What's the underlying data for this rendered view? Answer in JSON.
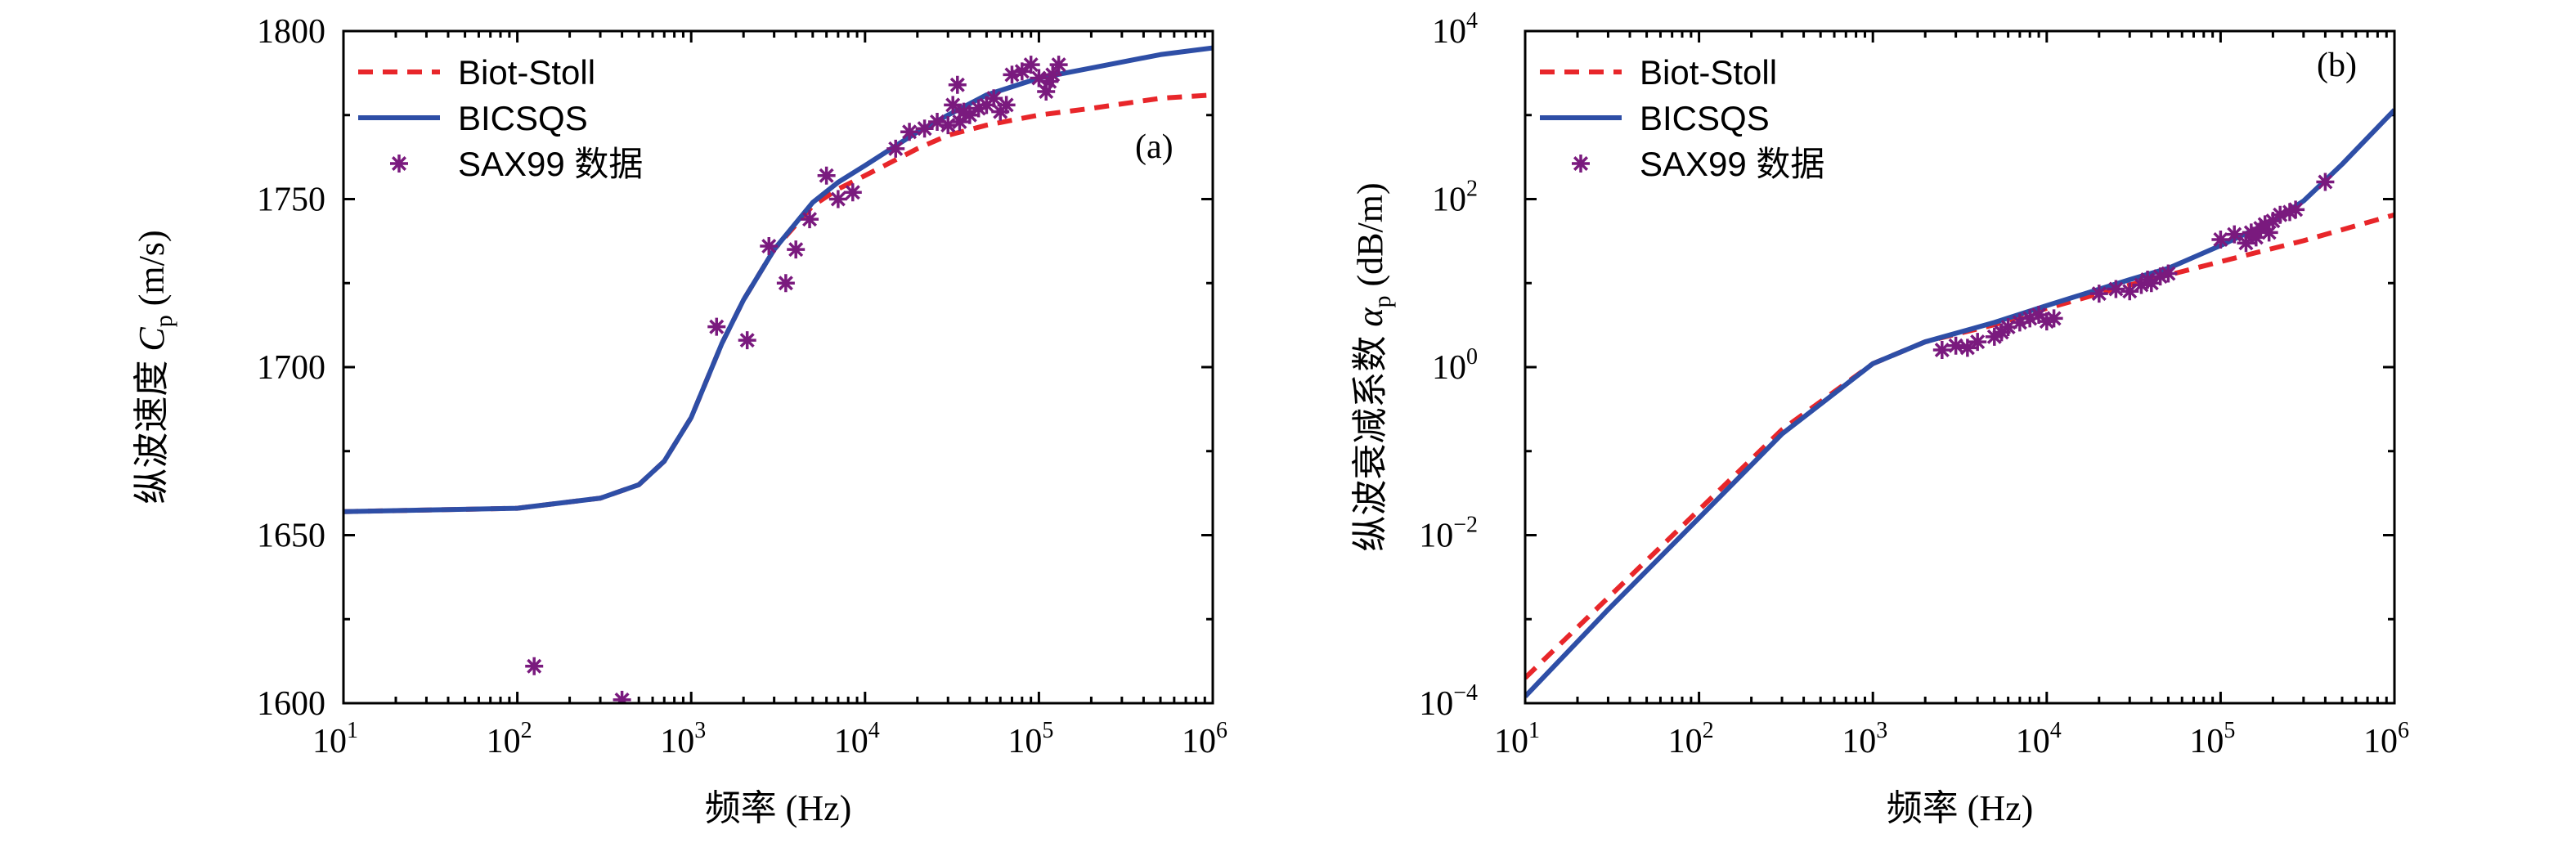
{
  "colors": {
    "biot": "#e8262a",
    "bicsqs": "#2e4ea6",
    "sax": "#7a1a7e"
  },
  "chart_data": [
    {
      "type": "line",
      "panel_label": "(a)",
      "xlabel": "频率 (Hz)",
      "ylabel_prefix": "纵波速度",
      "ylabel_sym": "C",
      "ylabel_sub": "p",
      "ylabel_unit": "(m/s)",
      "xscale": "log",
      "xlim": [
        10,
        1000000
      ],
      "ylim": [
        1600,
        1800
      ],
      "x_tick_exponents": [
        "1",
        "2",
        "3",
        "4",
        "5",
        "6"
      ],
      "x_tick_base": "10",
      "y_ticks": [
        "1600",
        "1650",
        "1700",
        "1750",
        "1800"
      ],
      "legend_position": "top-left",
      "legend": [
        "Biot-Stoll",
        "BICSQS",
        "SAX99 数据"
      ],
      "series": [
        {
          "name": "Biot-Stoll",
          "style": "dashed",
          "x": [
            10,
            100,
            300,
            500,
            700,
            1000,
            1500,
            2000,
            3000,
            5000,
            7000,
            10000,
            20000,
            30000,
            50000,
            100000,
            200000,
            500000,
            1000000
          ],
          "y": [
            1657,
            1658,
            1661,
            1665,
            1672,
            1685,
            1707,
            1720,
            1735,
            1748,
            1753,
            1757,
            1765,
            1769,
            1772,
            1775,
            1777,
            1780,
            1781
          ]
        },
        {
          "name": "BICSQS",
          "style": "solid",
          "x": [
            10,
            100,
            300,
            500,
            700,
            1000,
            1500,
            2000,
            3000,
            5000,
            7000,
            10000,
            20000,
            30000,
            50000,
            100000,
            200000,
            500000,
            1000000
          ],
          "y": [
            1657,
            1658,
            1661,
            1665,
            1672,
            1685,
            1707,
            1720,
            1735,
            1749,
            1755,
            1760,
            1770,
            1775,
            1781,
            1786,
            1789,
            1793,
            1795
          ]
        },
        {
          "name": "SAX99 数据",
          "style": "markers",
          "x": [
            125,
            400,
            1400,
            2100,
            2800,
            3500,
            4000,
            4800,
            6000,
            7000,
            8500,
            15000,
            18000,
            22000,
            26000,
            30000,
            32000,
            34000,
            35000,
            37000,
            40000,
            45000,
            50000,
            55000,
            60000,
            65000,
            70000,
            80000,
            90000,
            100000,
            110000,
            115000,
            120000,
            130000
          ],
          "y": [
            1611,
            1601,
            1712,
            1708,
            1736,
            1725,
            1735,
            1744,
            1757,
            1750,
            1752,
            1765,
            1770,
            1771,
            1773,
            1772,
            1778,
            1784,
            1773,
            1776,
            1775,
            1777,
            1778,
            1780,
            1776,
            1778,
            1787,
            1788,
            1790,
            1786,
            1782,
            1785,
            1787,
            1790
          ]
        }
      ]
    },
    {
      "type": "line",
      "panel_label": "(b)",
      "xlabel": "频率 (Hz)",
      "ylabel_prefix": "纵波衰减系数",
      "ylabel_sym": "α",
      "ylabel_sub": "p",
      "ylabel_unit": "(dB/m)",
      "xscale": "log",
      "yscale": "log",
      "xlim": [
        10,
        1000000
      ],
      "ylim": [
        0.0001,
        10000
      ],
      "x_tick_exponents": [
        "1",
        "2",
        "3",
        "4",
        "5",
        "6"
      ],
      "y_tick_exponents": [
        "−4",
        "−2",
        "0",
        "2",
        "4"
      ],
      "x_tick_base": "10",
      "y_tick_base": "10",
      "legend_position": "top-left",
      "legend": [
        "Biot-Stoll",
        "BICSQS",
        "SAX99 数据"
      ],
      "series": [
        {
          "name": "Biot-Stoll",
          "style": "dashed",
          "x": [
            10,
            30,
            100,
            300,
            1000,
            2000,
            5000,
            10000,
            30000,
            100000,
            300000,
            1000000
          ],
          "y": [
            0.0002,
            0.0018,
            0.02,
            0.18,
            1.1,
            2.0,
            3.2,
            5.0,
            9.5,
            18,
            32,
            65
          ]
        },
        {
          "name": "BICSQS",
          "style": "solid",
          "x": [
            10,
            30,
            100,
            300,
            1000,
            2000,
            5000,
            10000,
            30000,
            50000,
            100000,
            200000,
            300000,
            500000,
            1000000
          ],
          "y": [
            0.00012,
            0.0013,
            0.016,
            0.16,
            1.1,
            2.0,
            3.4,
            5.4,
            11,
            15,
            28,
            55,
            95,
            260,
            1150
          ]
        },
        {
          "name": "SAX99 数据",
          "style": "markers",
          "x": [
            2500,
            3000,
            3500,
            4000,
            5000,
            5500,
            6000,
            7000,
            8000,
            9000,
            10000,
            11000,
            20000,
            25000,
            30000,
            35000,
            38000,
            40000,
            45000,
            50000,
            100000,
            120000,
            140000,
            150000,
            160000,
            170000,
            180000,
            190000,
            200000,
            220000,
            250000,
            270000,
            400000
          ],
          "y": [
            1.6,
            1.8,
            1.7,
            2.0,
            2.3,
            2.6,
            3.0,
            3.4,
            3.8,
            4.2,
            3.5,
            3.8,
            7.5,
            8.5,
            8.0,
            9.5,
            11,
            10,
            12,
            13,
            33,
            38,
            30,
            40,
            35,
            45,
            50,
            40,
            55,
            65,
            70,
            75,
            160
          ]
        }
      ]
    }
  ]
}
